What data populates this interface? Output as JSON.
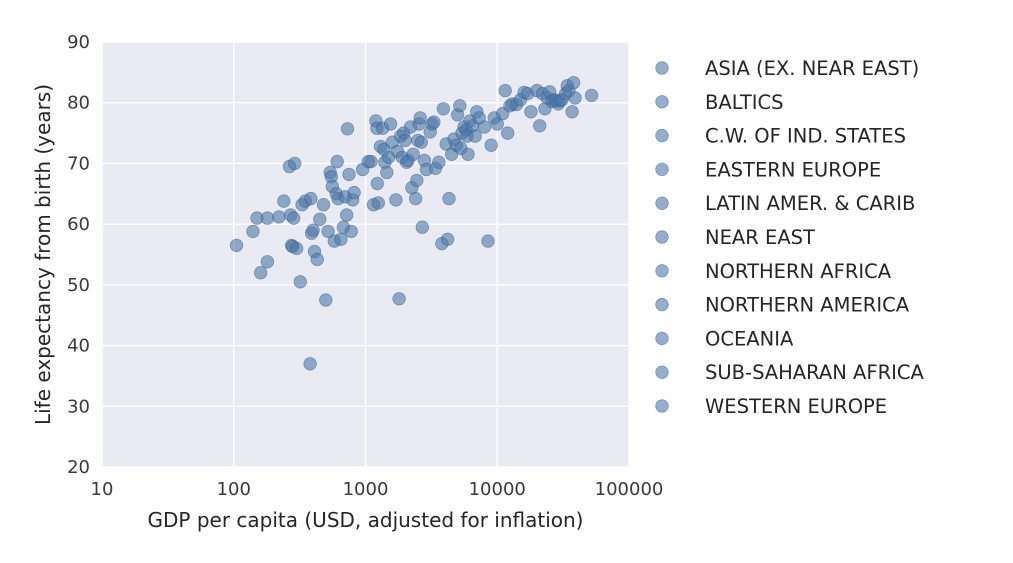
{
  "chart_data": {
    "type": "scatter",
    "title": "",
    "xlabel": "GDP per capita (USD, adjusted for inflation)",
    "ylabel": "Life expectancy from birth (years)",
    "xscale": "log",
    "xlim": [
      10,
      100000
    ],
    "ylim": [
      20,
      90
    ],
    "xticks": [
      "10",
      "100",
      "1000",
      "10000",
      "100000"
    ],
    "yticks": [
      "20",
      "30",
      "40",
      "50",
      "60",
      "70",
      "80",
      "90"
    ],
    "grid": true,
    "legend_position": "outside-right",
    "point_color": "#4c78a8",
    "background_color": "#eaeaf2",
    "legend": [
      "ASIA (EX. NEAR EAST)",
      "BALTICS",
      "C.W. OF IND. STATES",
      "EASTERN EUROPE",
      "LATIN AMER. & CARIB",
      "NEAR EAST",
      "NORTHERN AFRICA",
      "NORTHERN AMERICA",
      "OCEANIA",
      "SUB-SAHARAN AFRICA",
      "WESTERN EUROPE"
    ],
    "points": [
      [
        105,
        56.5
      ],
      [
        140,
        58.8
      ],
      [
        150,
        61
      ],
      [
        160,
        52
      ],
      [
        180,
        53.8
      ],
      [
        180,
        61
      ],
      [
        220,
        61.2
      ],
      [
        240,
        63.8
      ],
      [
        265,
        69.5
      ],
      [
        270,
        61.5
      ],
      [
        275,
        56.5
      ],
      [
        280,
        56.3
      ],
      [
        285,
        61
      ],
      [
        290,
        70
      ],
      [
        300,
        56
      ],
      [
        320,
        50.5
      ],
      [
        330,
        63.2
      ],
      [
        350,
        63.8
      ],
      [
        380,
        37
      ],
      [
        385,
        64.2
      ],
      [
        390,
        58.5
      ],
      [
        400,
        59
      ],
      [
        410,
        55.5
      ],
      [
        430,
        54.2
      ],
      [
        450,
        60.8
      ],
      [
        480,
        63.2
      ],
      [
        500,
        47.5
      ],
      [
        520,
        58.8
      ],
      [
        540,
        68.5
      ],
      [
        550,
        67.8
      ],
      [
        560,
        66.2
      ],
      [
        580,
        57.2
      ],
      [
        600,
        65
      ],
      [
        610,
        70.3
      ],
      [
        620,
        64.2
      ],
      [
        650,
        57.5
      ],
      [
        680,
        59.5
      ],
      [
        700,
        64.5
      ],
      [
        720,
        61.5
      ],
      [
        730,
        75.7
      ],
      [
        750,
        68.2
      ],
      [
        780,
        58.8
      ],
      [
        800,
        64
      ],
      [
        820,
        65.2
      ],
      [
        950,
        69
      ],
      [
        1050,
        70.3
      ],
      [
        1100,
        70.3
      ],
      [
        1150,
        63.2
      ],
      [
        1200,
        77
      ],
      [
        1220,
        75.8
      ],
      [
        1230,
        66.7
      ],
      [
        1250,
        63.5
      ],
      [
        1300,
        72.8
      ],
      [
        1350,
        75.8
      ],
      [
        1380,
        72.3
      ],
      [
        1400,
        70.2
      ],
      [
        1450,
        68.5
      ],
      [
        1500,
        71
      ],
      [
        1550,
        76.5
      ],
      [
        1600,
        73.5
      ],
      [
        1700,
        64
      ],
      [
        1750,
        72
      ],
      [
        1800,
        47.7
      ],
      [
        1850,
        74.5
      ],
      [
        1900,
        71
      ],
      [
        1950,
        75
      ],
      [
        2000,
        73.8
      ],
      [
        2050,
        70.2
      ],
      [
        2100,
        70.5
      ],
      [
        2200,
        76
      ],
      [
        2250,
        66
      ],
      [
        2300,
        71.5
      ],
      [
        2400,
        64.2
      ],
      [
        2450,
        67.2
      ],
      [
        2500,
        73.8
      ],
      [
        2550,
        76.5
      ],
      [
        2600,
        77.5
      ],
      [
        2650,
        73.5
      ],
      [
        2700,
        59.5
      ],
      [
        2800,
        70.5
      ],
      [
        2900,
        69
      ],
      [
        3100,
        75.2
      ],
      [
        3200,
        76.5
      ],
      [
        3300,
        76.8
      ],
      [
        3400,
        69.2
      ],
      [
        3600,
        70.2
      ],
      [
        3800,
        56.8
      ],
      [
        3900,
        79
      ],
      [
        4100,
        73.2
      ],
      [
        4200,
        57.5
      ],
      [
        4300,
        64.2
      ],
      [
        4500,
        71.5
      ],
      [
        4700,
        74
      ],
      [
        4900,
        73
      ],
      [
        5000,
        78
      ],
      [
        5200,
        79.5
      ],
      [
        5300,
        72.5
      ],
      [
        5400,
        75
      ],
      [
        5600,
        76
      ],
      [
        5800,
        75.5
      ],
      [
        5900,
        74.5
      ],
      [
        6000,
        71.5
      ],
      [
        6200,
        77
      ],
      [
        6500,
        76.2
      ],
      [
        6800,
        74.5
      ],
      [
        7000,
        78.5
      ],
      [
        7300,
        77.5
      ],
      [
        8000,
        76
      ],
      [
        8500,
        57.2
      ],
      [
        9000,
        73
      ],
      [
        9500,
        77.5
      ],
      [
        10000,
        76.5
      ],
      [
        11000,
        78.2
      ],
      [
        11500,
        82
      ],
      [
        12000,
        75
      ],
      [
        12500,
        79.5
      ],
      [
        13000,
        79.8
      ],
      [
        14000,
        79.7
      ],
      [
        15000,
        80.5
      ],
      [
        16000,
        81.7
      ],
      [
        17000,
        81.5
      ],
      [
        18000,
        78.5
      ],
      [
        20000,
        82
      ],
      [
        21000,
        76.2
      ],
      [
        22000,
        81.5
      ],
      [
        23000,
        79
      ],
      [
        24000,
        80.8
      ],
      [
        25000,
        81.8
      ],
      [
        26000,
        80.2
      ],
      [
        27000,
        80.5
      ],
      [
        28000,
        80.3
      ],
      [
        29000,
        79.8
      ],
      [
        30000,
        80.3
      ],
      [
        31000,
        80.5
      ],
      [
        33000,
        81.5
      ],
      [
        34000,
        82.8
      ],
      [
        35000,
        82
      ],
      [
        37000,
        78.5
      ],
      [
        38000,
        83.3
      ],
      [
        39000,
        80.8
      ],
      [
        52000,
        81.2
      ]
    ]
  }
}
